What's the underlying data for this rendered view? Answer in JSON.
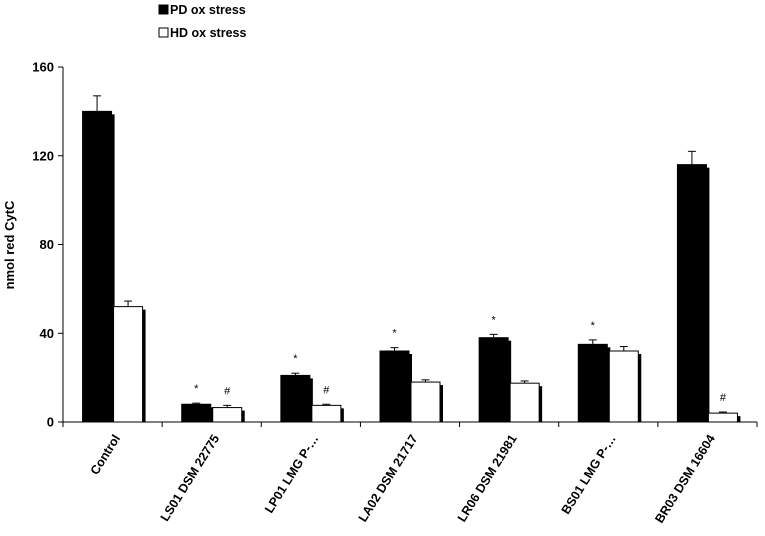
{
  "chart_data": {
    "type": "bar",
    "ylabel": "nmol red CytC",
    "ylim": [
      0,
      160
    ],
    "yticks": [
      "0",
      "40",
      "80",
      "120",
      "160"
    ],
    "categories": [
      "Control",
      "LS01 DSM 22775",
      "LP01 LMG P-…",
      "LA02 DSM 21717",
      "LR06 DSM 21981",
      "BS01 LMG P-…",
      "BR03 DSM 16604"
    ],
    "series": [
      {
        "name": "PD ox stress",
        "color": "#000000",
        "values": [
          140,
          8,
          21,
          32,
          38,
          35,
          116
        ],
        "errors": [
          7,
          0.5,
          1,
          1.5,
          1.5,
          2,
          6
        ],
        "marks": [
          "",
          "*",
          "*",
          "*",
          "*",
          "*",
          ""
        ]
      },
      {
        "name": "HD ox stress",
        "color": "#ffffff",
        "values": [
          52,
          6.5,
          7.5,
          18,
          17.5,
          32,
          4
        ],
        "errors": [
          2.5,
          1,
          0.5,
          1,
          1,
          2,
          0.5
        ],
        "marks": [
          "",
          "#",
          "#",
          "",
          "",
          "",
          "#"
        ]
      }
    ],
    "legend_position": "top-left",
    "grid": false
  }
}
